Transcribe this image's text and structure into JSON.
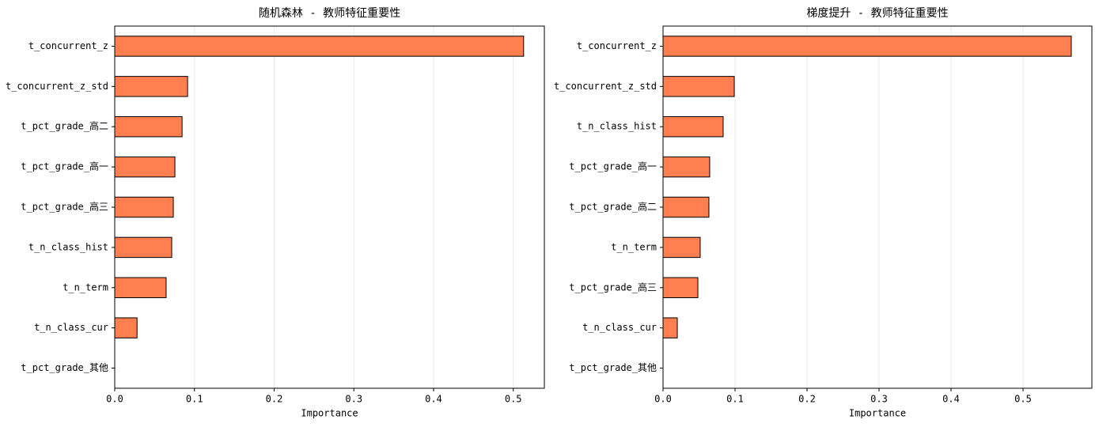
{
  "chart_data": [
    {
      "type": "barh",
      "title": "随机森林 - 教师特征重要性",
      "xlabel": "Importance",
      "categories": [
        "t_concurrent_z",
        "t_concurrent_z_std",
        "t_pct_grade_高二",
        "t_pct_grade_高一",
        "t_pct_grade_高三",
        "t_n_class_hist",
        "t_n_term",
        "t_n_class_cur",
        "t_pct_grade_其他"
      ],
      "values": [
        0.513,
        0.0914,
        0.0845,
        0.0755,
        0.0735,
        0.0715,
        0.0645,
        0.028,
        0
      ],
      "color": "#ff7f50",
      "edgecolor": "#000000",
      "xlim": [
        0,
        0.539
      ],
      "xticks": [
        {
          "value": 0,
          "label": "0.0"
        },
        0.1,
        0.2,
        0.3,
        0.4,
        0.5
      ],
      "grid": true
    },
    {
      "type": "barh",
      "title": "梯度提升 - 教师特征重要性",
      "xlabel": "Importance",
      "categories": [
        "t_concurrent_z",
        "t_concurrent_z_std",
        "t_n_class_hist",
        "t_pct_grade_高一",
        "t_pct_grade_高二",
        "t_n_term",
        "t_pct_grade_高三",
        "t_n_class_cur",
        "t_pct_grade_其他"
      ],
      "values": [
        0.567,
        0.0989,
        0.0835,
        0.0648,
        0.0637,
        0.0516,
        0.0484,
        0.0198,
        0
      ],
      "color": "#ff7f50",
      "edgecolor": "#000000",
      "xlim": [
        0,
        0.5956
      ],
      "xticks": [
        {
          "value": 0,
          "label": "0.0"
        },
        0.1,
        0.2,
        0.3,
        0.4,
        0.5
      ],
      "grid": true
    }
  ]
}
